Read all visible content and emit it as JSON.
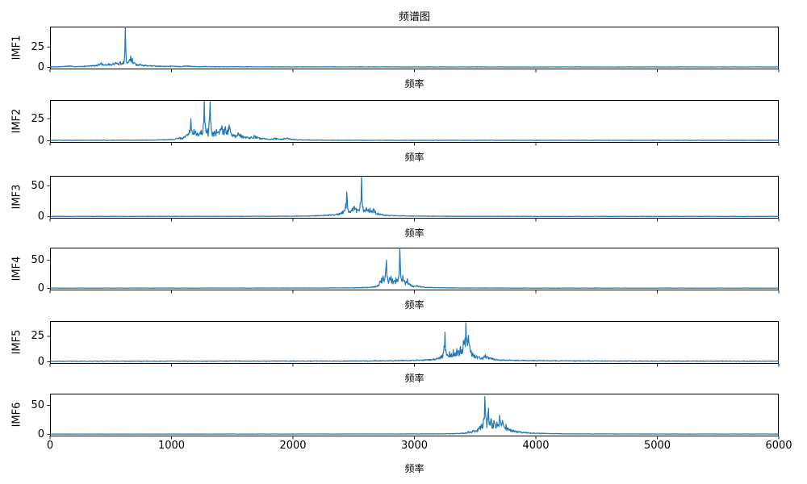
{
  "figure": {
    "title": "频谱图",
    "xlabel": "频率",
    "line_color": "#1f77b4",
    "background": "#ffffff",
    "xlim": [
      0,
      6000
    ],
    "xticks": [
      "0",
      "1000",
      "2000",
      "3000",
      "4000",
      "5000",
      "6000"
    ]
  },
  "chart_data": [
    {
      "type": "line",
      "ylabel": "IMF1",
      "yticks": [
        25,
        0
      ],
      "ylim": [
        -2.5,
        50
      ],
      "points": [
        [
          0,
          0.5
        ],
        [
          60,
          0.6
        ],
        [
          120,
          1.2
        ],
        [
          160,
          1.8
        ],
        [
          200,
          0.9
        ],
        [
          260,
          1.2
        ],
        [
          300,
          1.6
        ],
        [
          340,
          2.2
        ],
        [
          380,
          2.6
        ],
        [
          420,
          5.5
        ],
        [
          440,
          3
        ],
        [
          460,
          3.5
        ],
        [
          480,
          4.5
        ],
        [
          500,
          3.5
        ],
        [
          520,
          5
        ],
        [
          540,
          6
        ],
        [
          560,
          4.5
        ],
        [
          580,
          7
        ],
        [
          600,
          6
        ],
        [
          612,
          10
        ],
        [
          620,
          50
        ],
        [
          628,
          7
        ],
        [
          640,
          6
        ],
        [
          652,
          9
        ],
        [
          665,
          14
        ],
        [
          678,
          11
        ],
        [
          690,
          6
        ],
        [
          705,
          4.5
        ],
        [
          720,
          3.5
        ],
        [
          740,
          4
        ],
        [
          760,
          3
        ],
        [
          790,
          2.5
        ],
        [
          820,
          2
        ],
        [
          860,
          2.2
        ],
        [
          900,
          1.6
        ],
        [
          950,
          1.2
        ],
        [
          1000,
          1.6
        ],
        [
          1060,
          1.1
        ],
        [
          1120,
          2
        ],
        [
          1200,
          1
        ],
        [
          1300,
          0.9
        ],
        [
          1450,
          0.7
        ],
        [
          1700,
          0.6
        ],
        [
          2000,
          0.5
        ],
        [
          2500,
          0.5
        ],
        [
          3000,
          0.4
        ],
        [
          4000,
          0.4
        ],
        [
          5000,
          0.4
        ],
        [
          6000,
          0.4
        ]
      ]
    },
    {
      "type": "line",
      "ylabel": "IMF2",
      "yticks": [
        25,
        0
      ],
      "ylim": [
        -2.2,
        46
      ],
      "points": [
        [
          0,
          0.5
        ],
        [
          400,
          0.6
        ],
        [
          700,
          0.7
        ],
        [
          850,
          0.9
        ],
        [
          950,
          1.2
        ],
        [
          1000,
          1.8
        ],
        [
          1040,
          2.5
        ],
        [
          1070,
          4
        ],
        [
          1090,
          3
        ],
        [
          1110,
          5
        ],
        [
          1130,
          7
        ],
        [
          1148,
          12
        ],
        [
          1160,
          25
        ],
        [
          1172,
          9
        ],
        [
          1185,
          13
        ],
        [
          1200,
          11
        ],
        [
          1215,
          9
        ],
        [
          1230,
          8
        ],
        [
          1245,
          12
        ],
        [
          1258,
          10
        ],
        [
          1270,
          46
        ],
        [
          1282,
          12
        ],
        [
          1295,
          14
        ],
        [
          1305,
          10
        ],
        [
          1318,
          44
        ],
        [
          1328,
          12
        ],
        [
          1340,
          9
        ],
        [
          1355,
          11
        ],
        [
          1370,
          13
        ],
        [
          1385,
          10
        ],
        [
          1400,
          13
        ],
        [
          1415,
          17
        ],
        [
          1430,
          13
        ],
        [
          1445,
          16
        ],
        [
          1460,
          12
        ],
        [
          1475,
          18
        ],
        [
          1490,
          9
        ],
        [
          1510,
          7
        ],
        [
          1530,
          6
        ],
        [
          1550,
          9
        ],
        [
          1570,
          7
        ],
        [
          1590,
          5.5
        ],
        [
          1620,
          4.5
        ],
        [
          1650,
          4
        ],
        [
          1680,
          6
        ],
        [
          1710,
          4
        ],
        [
          1740,
          3
        ],
        [
          1780,
          2.5
        ],
        [
          1820,
          2
        ],
        [
          1860,
          3
        ],
        [
          1900,
          2
        ],
        [
          1950,
          3.5
        ],
        [
          1990,
          1.8
        ],
        [
          2050,
          1.2
        ],
        [
          2150,
          0.9
        ],
        [
          2300,
          0.7
        ],
        [
          2600,
          0.6
        ],
        [
          3000,
          0.5
        ],
        [
          4000,
          0.5
        ],
        [
          5000,
          0.5
        ],
        [
          6000,
          0.5
        ]
      ]
    },
    {
      "type": "line",
      "ylabel": "IMF3",
      "yticks": [
        50,
        0
      ],
      "ylim": [
        -3,
        66
      ],
      "points": [
        [
          0,
          0.5
        ],
        [
          1200,
          0.6
        ],
        [
          1800,
          0.8
        ],
        [
          2000,
          1
        ],
        [
          2120,
          1.4
        ],
        [
          2200,
          2
        ],
        [
          2260,
          2.6
        ],
        [
          2320,
          3.5
        ],
        [
          2360,
          4.5
        ],
        [
          2390,
          6
        ],
        [
          2410,
          9
        ],
        [
          2430,
          12
        ],
        [
          2443,
          40
        ],
        [
          2455,
          11
        ],
        [
          2470,
          9
        ],
        [
          2488,
          13
        ],
        [
          2505,
          17
        ],
        [
          2520,
          14
        ],
        [
          2535,
          11
        ],
        [
          2550,
          13
        ],
        [
          2565,
          66
        ],
        [
          2577,
          16
        ],
        [
          2590,
          11
        ],
        [
          2605,
          15
        ],
        [
          2620,
          12
        ],
        [
          2635,
          14
        ],
        [
          2650,
          10
        ],
        [
          2665,
          13
        ],
        [
          2680,
          8
        ],
        [
          2700,
          6
        ],
        [
          2720,
          4.5
        ],
        [
          2745,
          3.5
        ],
        [
          2780,
          2.5
        ],
        [
          2830,
          2
        ],
        [
          2900,
          1.5
        ],
        [
          3000,
          1.1
        ],
        [
          3150,
          0.9
        ],
        [
          3400,
          0.7
        ],
        [
          3700,
          0.6
        ],
        [
          4000,
          0.5
        ],
        [
          5000,
          0.5
        ],
        [
          6000,
          0.5
        ]
      ]
    },
    {
      "type": "line",
      "ylabel": "IMF4",
      "yticks": [
        50,
        0
      ],
      "ylim": [
        -3.5,
        72
      ],
      "points": [
        [
          0,
          0.5
        ],
        [
          1600,
          0.6
        ],
        [
          2300,
          0.8
        ],
        [
          2450,
          1
        ],
        [
          2550,
          1.4
        ],
        [
          2620,
          2
        ],
        [
          2670,
          3.5
        ],
        [
          2700,
          6
        ],
        [
          2715,
          12
        ],
        [
          2730,
          18
        ],
        [
          2742,
          22
        ],
        [
          2755,
          16
        ],
        [
          2770,
          50
        ],
        [
          2782,
          14
        ],
        [
          2795,
          19
        ],
        [
          2808,
          22
        ],
        [
          2820,
          17
        ],
        [
          2835,
          14
        ],
        [
          2848,
          19
        ],
        [
          2860,
          16
        ],
        [
          2872,
          21
        ],
        [
          2880,
          72
        ],
        [
          2892,
          17
        ],
        [
          2905,
          23
        ],
        [
          2918,
          14
        ],
        [
          2930,
          11
        ],
        [
          2942,
          17
        ],
        [
          2955,
          9
        ],
        [
          2970,
          7
        ],
        [
          2985,
          5
        ],
        [
          3000,
          4.5
        ],
        [
          3020,
          5.5
        ],
        [
          3045,
          4
        ],
        [
          3070,
          3
        ],
        [
          3100,
          2.2
        ],
        [
          3140,
          1.8
        ],
        [
          3200,
          1.4
        ],
        [
          3300,
          1
        ],
        [
          3450,
          0.8
        ],
        [
          3700,
          0.6
        ],
        [
          4000,
          0.5
        ],
        [
          5000,
          0.5
        ],
        [
          6000,
          0.5
        ]
      ]
    },
    {
      "type": "line",
      "ylabel": "IMF5",
      "yticks": [
        25,
        0
      ],
      "ylim": [
        -2,
        40
      ],
      "points": [
        [
          0,
          0.4
        ],
        [
          1200,
          0.5
        ],
        [
          2200,
          0.7
        ],
        [
          2600,
          0.8
        ],
        [
          2800,
          1
        ],
        [
          2900,
          1.3
        ],
        [
          2980,
          1.6
        ],
        [
          3050,
          1.8
        ],
        [
          3100,
          2.2
        ],
        [
          3150,
          2.6
        ],
        [
          3190,
          3.5
        ],
        [
          3220,
          6
        ],
        [
          3240,
          9
        ],
        [
          3252,
          29
        ],
        [
          3263,
          8
        ],
        [
          3275,
          6.5
        ],
        [
          3290,
          10
        ],
        [
          3305,
          8
        ],
        [
          3320,
          12
        ],
        [
          3335,
          9
        ],
        [
          3350,
          13
        ],
        [
          3365,
          11
        ],
        [
          3380,
          15
        ],
        [
          3392,
          12
        ],
        [
          3404,
          21
        ],
        [
          3412,
          17
        ],
        [
          3424,
          38.5
        ],
        [
          3434,
          19
        ],
        [
          3445,
          26
        ],
        [
          3455,
          16
        ],
        [
          3468,
          11
        ],
        [
          3480,
          9
        ],
        [
          3495,
          7
        ],
        [
          3515,
          5.5
        ],
        [
          3535,
          5
        ],
        [
          3560,
          4
        ],
        [
          3585,
          7
        ],
        [
          3605,
          5
        ],
        [
          3630,
          4
        ],
        [
          3660,
          3
        ],
        [
          3695,
          2.2
        ],
        [
          3730,
          2
        ],
        [
          3780,
          1.8
        ],
        [
          3850,
          1.5
        ],
        [
          3950,
          1.3
        ],
        [
          4050,
          1.1
        ],
        [
          4200,
          1
        ],
        [
          4400,
          0.9
        ],
        [
          4600,
          0.7
        ],
        [
          5000,
          0.6
        ],
        [
          6000,
          0.5
        ]
      ]
    },
    {
      "type": "line",
      "ylabel": "IMF6",
      "yticks": [
        50,
        0
      ],
      "ylim": [
        -3.5,
        70
      ],
      "points": [
        [
          0,
          0.4
        ],
        [
          1800,
          0.5
        ],
        [
          2700,
          0.6
        ],
        [
          3100,
          0.8
        ],
        [
          3250,
          1
        ],
        [
          3330,
          1.4
        ],
        [
          3380,
          2
        ],
        [
          3420,
          2.8
        ],
        [
          3445,
          5
        ],
        [
          3465,
          4
        ],
        [
          3485,
          7
        ],
        [
          3505,
          6
        ],
        [
          3520,
          9
        ],
        [
          3540,
          14
        ],
        [
          3555,
          18
        ],
        [
          3568,
          24
        ],
        [
          3580,
          65
        ],
        [
          3590,
          28
        ],
        [
          3600,
          24
        ],
        [
          3610,
          45
        ],
        [
          3620,
          21
        ],
        [
          3632,
          27
        ],
        [
          3642,
          19
        ],
        [
          3655,
          24
        ],
        [
          3666,
          17
        ],
        [
          3680,
          21
        ],
        [
          3692,
          16
        ],
        [
          3702,
          33
        ],
        [
          3712,
          19
        ],
        [
          3725,
          24
        ],
        [
          3738,
          14
        ],
        [
          3755,
          17
        ],
        [
          3772,
          11
        ],
        [
          3790,
          9
        ],
        [
          3810,
          7.5
        ],
        [
          3835,
          6
        ],
        [
          3865,
          5
        ],
        [
          3900,
          4
        ],
        [
          3940,
          3
        ],
        [
          3985,
          2.5
        ],
        [
          4030,
          2
        ],
        [
          4090,
          1.6
        ],
        [
          4160,
          1.2
        ],
        [
          4250,
          1
        ],
        [
          4400,
          0.8
        ],
        [
          4700,
          0.7
        ],
        [
          5000,
          0.6
        ],
        [
          6000,
          0.5
        ]
      ]
    }
  ]
}
